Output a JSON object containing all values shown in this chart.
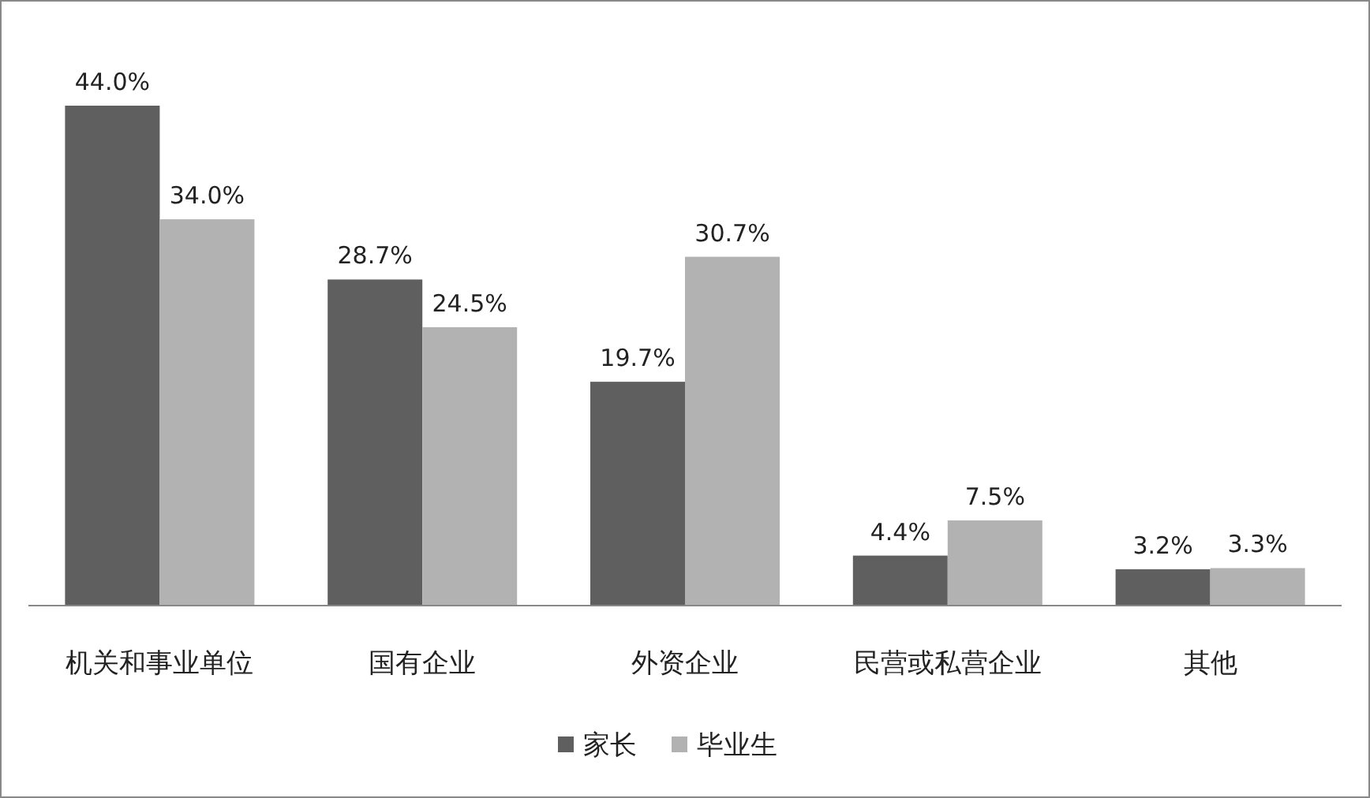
{
  "chart_data": {
    "type": "bar",
    "categories": [
      "机关和事业单位",
      "国有企业",
      "外资企业",
      "民营或私营企业",
      "其他"
    ],
    "series": [
      {
        "name": "家长",
        "color": "#5f5f5f",
        "values": [
          44.0,
          28.7,
          19.7,
          4.4,
          3.2
        ],
        "value_labels": [
          "44.0%",
          "28.7%",
          "19.7%",
          "4.4%",
          "3.2%"
        ]
      },
      {
        "name": "毕业生",
        "color": "#b2b2b2",
        "values": [
          34.0,
          24.5,
          30.7,
          7.5,
          3.3
        ],
        "value_labels": [
          "34.0%",
          "24.5%",
          "30.7%",
          "7.5%",
          "3.3%"
        ]
      }
    ],
    "legend": "bottom"
  }
}
